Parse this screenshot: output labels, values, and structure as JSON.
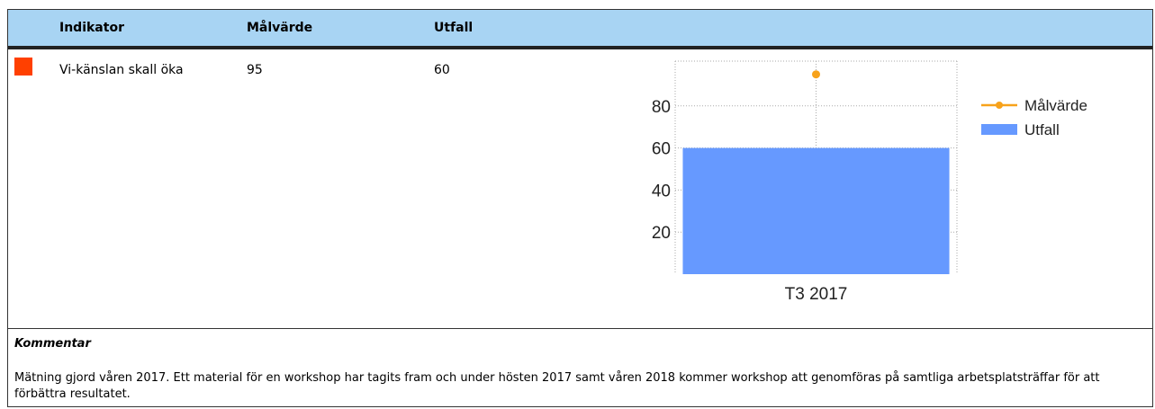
{
  "table": {
    "header": [
      "Indikator",
      "Målvärde",
      "Utfall"
    ],
    "rows": [
      [
        "Vi-känslan skall öka",
        "95",
        "60"
      ]
    ],
    "status_color": "#ff4000"
  },
  "comment": {
    "title": "Kommentar",
    "text": "Mätning gjord våren 2017. Ett material för en workshop har tagits fram och under hösten 2017 samt våren 2018 kommer workshop att genomföras på samtliga arbetsplatsträffar för att förbättra resultatet."
  },
  "chart_data": {
    "type": "bar",
    "categories": [
      "T3 2017"
    ],
    "series": [
      {
        "name": "Målvärde",
        "type": "line",
        "color": "#f7a21b",
        "values": [
          95
        ]
      },
      {
        "name": "Utfall",
        "type": "bar",
        "color": "#6699ff",
        "values": [
          60
        ]
      }
    ],
    "ylim": [
      0,
      100
    ],
    "yticks": [
      20,
      40,
      60,
      80
    ],
    "grid": true,
    "legend": "right"
  }
}
